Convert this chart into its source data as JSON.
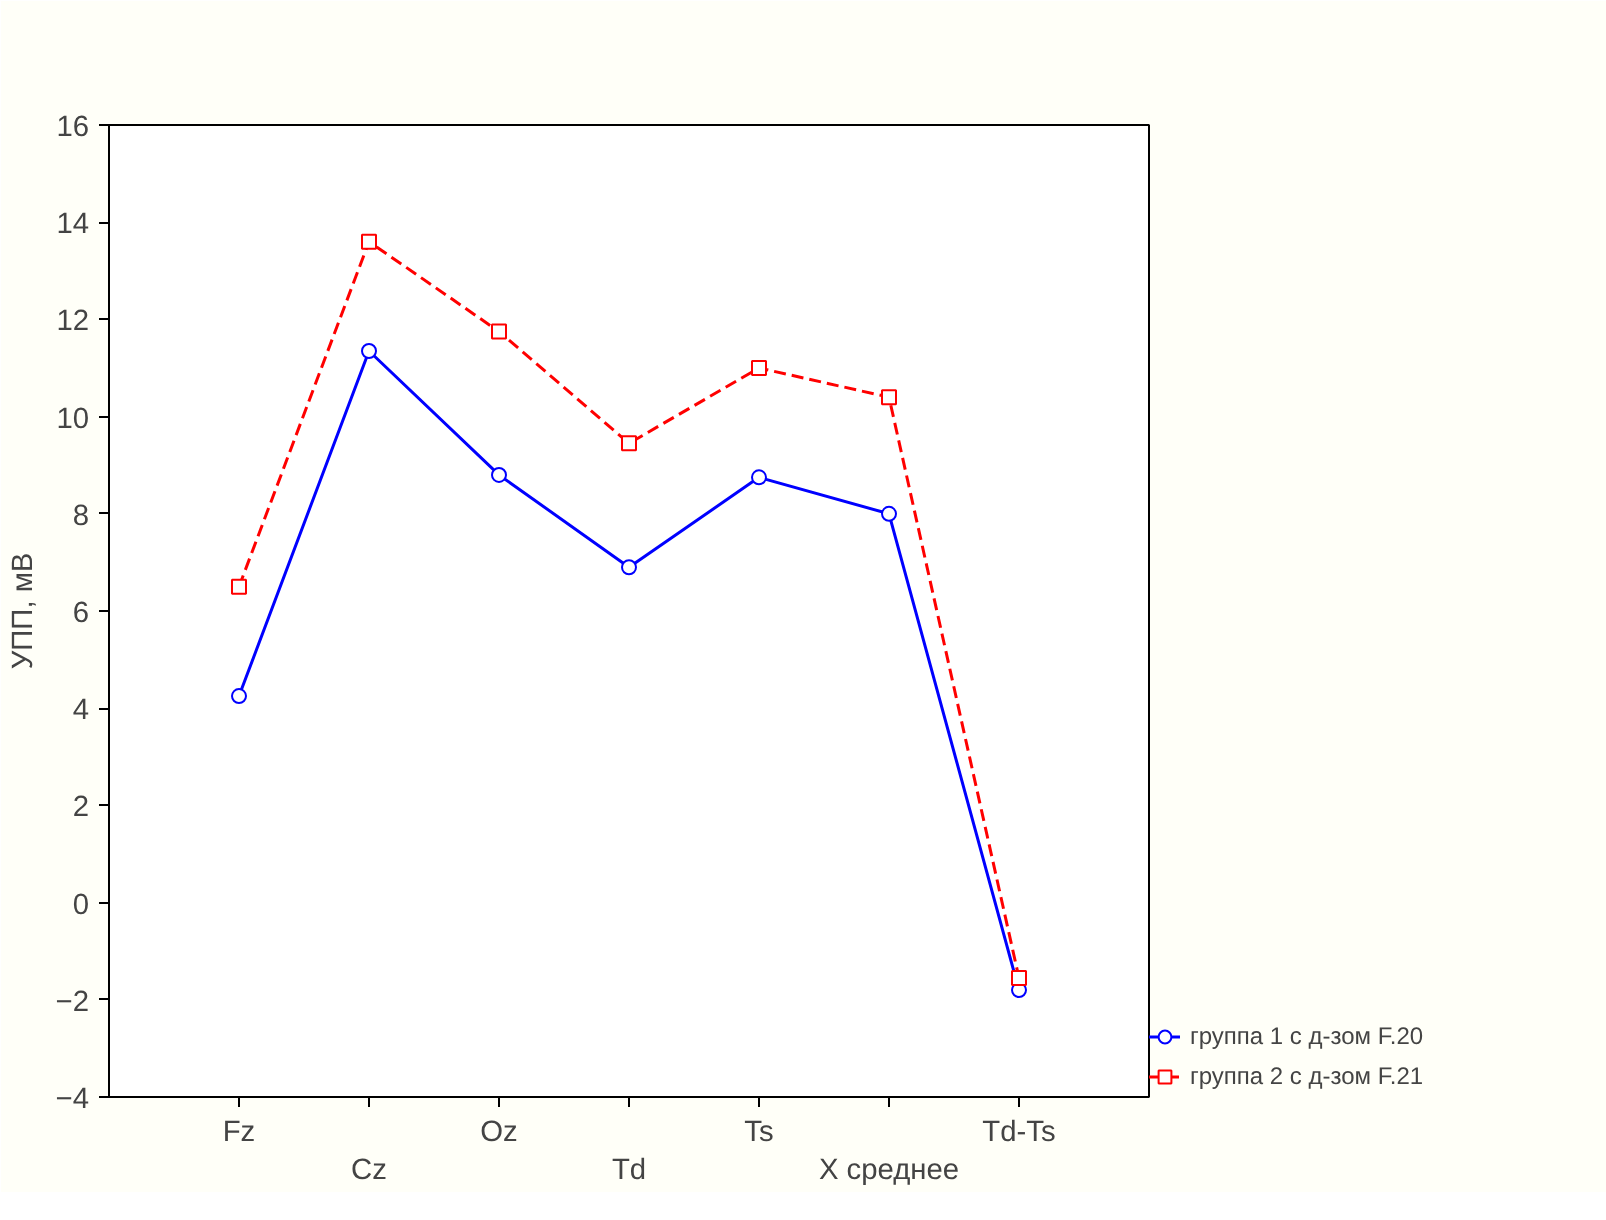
{
  "chart_data": {
    "type": "line",
    "ylabel": "УПП, мВ",
    "categories": [
      "Fz",
      "Cz",
      "Oz",
      "Td",
      "Ts",
      "X среднее",
      "Td-Ts"
    ],
    "series": [
      {
        "name": "группа 1 с д-зом F.20",
        "color": "#0000ff",
        "values": [
          4.25,
          11.35,
          8.8,
          6.9,
          8.75,
          8.0,
          -1.8
        ],
        "marker": "circle",
        "line_style": "solid"
      },
      {
        "name": "группа 2 с д-зом F.21",
        "color": "#ff0000",
        "values": [
          6.5,
          13.6,
          11.75,
          9.45,
          11.0,
          10.4,
          -1.55
        ],
        "marker": "square",
        "line_style": "dashed"
      }
    ],
    "ylim": [
      -4,
      16
    ],
    "yticks": [
      -4,
      -2,
      0,
      2,
      4,
      6,
      8,
      10,
      12,
      14,
      16
    ],
    "grid": false,
    "legend": "bottom right"
  }
}
